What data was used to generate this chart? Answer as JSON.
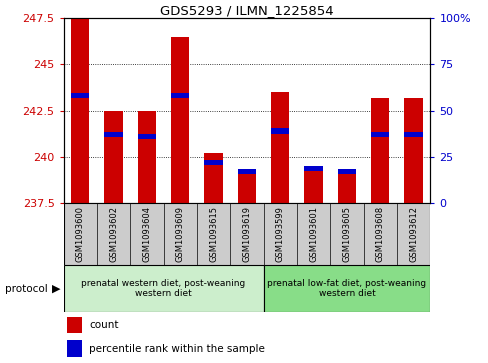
{
  "title": "GDS5293 / ILMN_1225854",
  "samples": [
    "GSM1093600",
    "GSM1093602",
    "GSM1093604",
    "GSM1093609",
    "GSM1093615",
    "GSM1093619",
    "GSM1093599",
    "GSM1093601",
    "GSM1093605",
    "GSM1093608",
    "GSM1093612"
  ],
  "red_values": [
    247.5,
    242.5,
    242.5,
    246.5,
    240.2,
    239.3,
    243.5,
    239.5,
    239.3,
    243.2,
    243.2
  ],
  "blue_values": [
    243.3,
    241.2,
    241.1,
    243.3,
    239.7,
    239.2,
    241.4,
    239.4,
    239.2,
    241.2,
    241.2
  ],
  "ymin": 237.5,
  "ymax": 247.5,
  "yticks": [
    237.5,
    240.0,
    242.5,
    245.0,
    247.5
  ],
  "ytick_labels": [
    "237.5",
    "240",
    "242.5",
    "245",
    "247.5"
  ],
  "y2min": 0,
  "y2max": 100,
  "y2ticks": [
    0,
    25,
    50,
    75,
    100
  ],
  "y2tick_labels": [
    "0",
    "25",
    "50",
    "75",
    "100%"
  ],
  "group1_indices": [
    0,
    1,
    2,
    3,
    4,
    5
  ],
  "group2_indices": [
    6,
    7,
    8,
    9,
    10
  ],
  "group1_label": "prenatal western diet, post-weaning\nwestern diet",
  "group2_label": "prenatal low-fat diet, post-weaning\nwestern diet",
  "protocol_label": "protocol",
  "legend_red": "count",
  "legend_blue": "percentile rank within the sample",
  "bar_width": 0.55,
  "red_color": "#CC0000",
  "blue_color": "#0000CC",
  "group1_bg": "#cceecc",
  "group2_bg": "#88dd88",
  "tick_bg": "#cccccc",
  "yaxis_color": "#CC0000",
  "y2axis_color": "#0000CC",
  "grid_yticks": [
    240.0,
    242.5,
    245.0
  ]
}
